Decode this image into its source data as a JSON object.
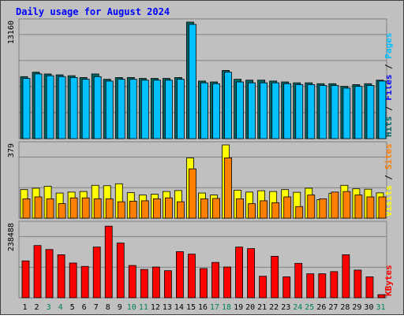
{
  "chart_data": {
    "type": "bar",
    "title": "Daily usage for August 2024",
    "categories": [
      "1",
      "2",
      "3",
      "4",
      "5",
      "6",
      "7",
      "8",
      "9",
      "10",
      "11",
      "12",
      "13",
      "14",
      "15",
      "16",
      "17",
      "18",
      "19",
      "20",
      "21",
      "22",
      "23",
      "24",
      "25",
      "26",
      "27",
      "28",
      "29",
      "30",
      "31"
    ],
    "weekend_days": [
      "3",
      "4",
      "10",
      "11",
      "17",
      "18",
      "24",
      "25",
      "31"
    ],
    "colors": {
      "title": "#0000ff",
      "plot_bg": "#c0c0c0",
      "frame": "#808080",
      "grid": "#808080",
      "hits": "#006666",
      "files": "#00c0ff",
      "pages": "#00c0ff",
      "visits": "#ffff00",
      "sites": "#ff8000",
      "kbytes": "#ff0000",
      "weekday_label": "#000000",
      "weekend_label": "#00805c",
      "axis_label": "#000000"
    },
    "panels": [
      {
        "id": "requests",
        "ymax_label": "13160",
        "ylim": [
          0,
          13160
        ],
        "legend": [
          {
            "text": "Pages",
            "color": "#00c0ff"
          },
          {
            "text": "Files",
            "color": "#0000ff"
          },
          {
            "text": "Hits",
            "color": "#006666"
          }
        ],
        "legend_sep": "/",
        "series": [
          {
            "name": "Hits",
            "values": [
              7000,
              7500,
              7300,
              7200,
              7100,
              6900,
              7300,
              6700,
              6900,
              6900,
              6800,
              6800,
              6800,
              6900,
              13160,
              6500,
              6400,
              7700,
              6700,
              6600,
              6600,
              6500,
              6400,
              6300,
              6300,
              6200,
              6200,
              5900,
              6100,
              6200,
              6600
            ]
          },
          {
            "name": "Files",
            "values": [
              6800,
              7300,
              7100,
              7000,
              6900,
              6700,
              7000,
              6500,
              6700,
              6700,
              6600,
              6600,
              6600,
              6700,
              12900,
              6300,
              6200,
              7500,
              6400,
              6300,
              6300,
              6300,
              6200,
              6100,
              6100,
              6000,
              6000,
              5700,
              5900,
              6000,
              6500
            ]
          }
        ]
      },
      {
        "id": "visits",
        "ymax_label": "379",
        "ylim": [
          0,
          379
        ],
        "legend": [
          {
            "text": "Sites",
            "color": "#ff8000"
          },
          {
            "text": "Visits",
            "color": "#ffff00"
          }
        ],
        "legend_sep": "/",
        "series": [
          {
            "name": "Visits",
            "values": [
              148,
              155,
              165,
              130,
              135,
              138,
              170,
              168,
              178,
              132,
              120,
              124,
              138,
              143,
              312,
              130,
              120,
              379,
              145,
              135,
              142,
              138,
              148,
              134,
              155,
              96,
              128,
              170,
              152,
              150,
              131
            ]
          },
          {
            "name": "Sites",
            "values": [
              100,
              110,
              100,
              75,
              105,
              105,
              100,
              100,
              85,
              88,
              90,
              100,
              105,
              85,
              255,
              100,
              102,
              312,
              100,
              75,
              90,
              80,
              110,
              60,
              120,
              100,
              135,
              138,
              120,
              110,
              110
            ]
          }
        ]
      },
      {
        "id": "kbytes",
        "ymax_label": "238488",
        "ylim": [
          0,
          238488
        ],
        "legend": [
          {
            "text": "KBytes",
            "color": "#ff0000"
          }
        ],
        "legend_sep": "",
        "series": [
          {
            "name": "KBytes",
            "values": [
              120000,
              170000,
              157000,
              140000,
              113000,
              102000,
              165000,
              233000,
              178000,
              105000,
              92000,
              100000,
              88000,
              150000,
              142000,
              95000,
              115000,
              100000,
              165000,
              160000,
              70000,
              135000,
              68000,
              112000,
              78000,
              78000,
              85000,
              140000,
              90000,
              68000,
              10000
            ]
          }
        ]
      }
    ]
  }
}
